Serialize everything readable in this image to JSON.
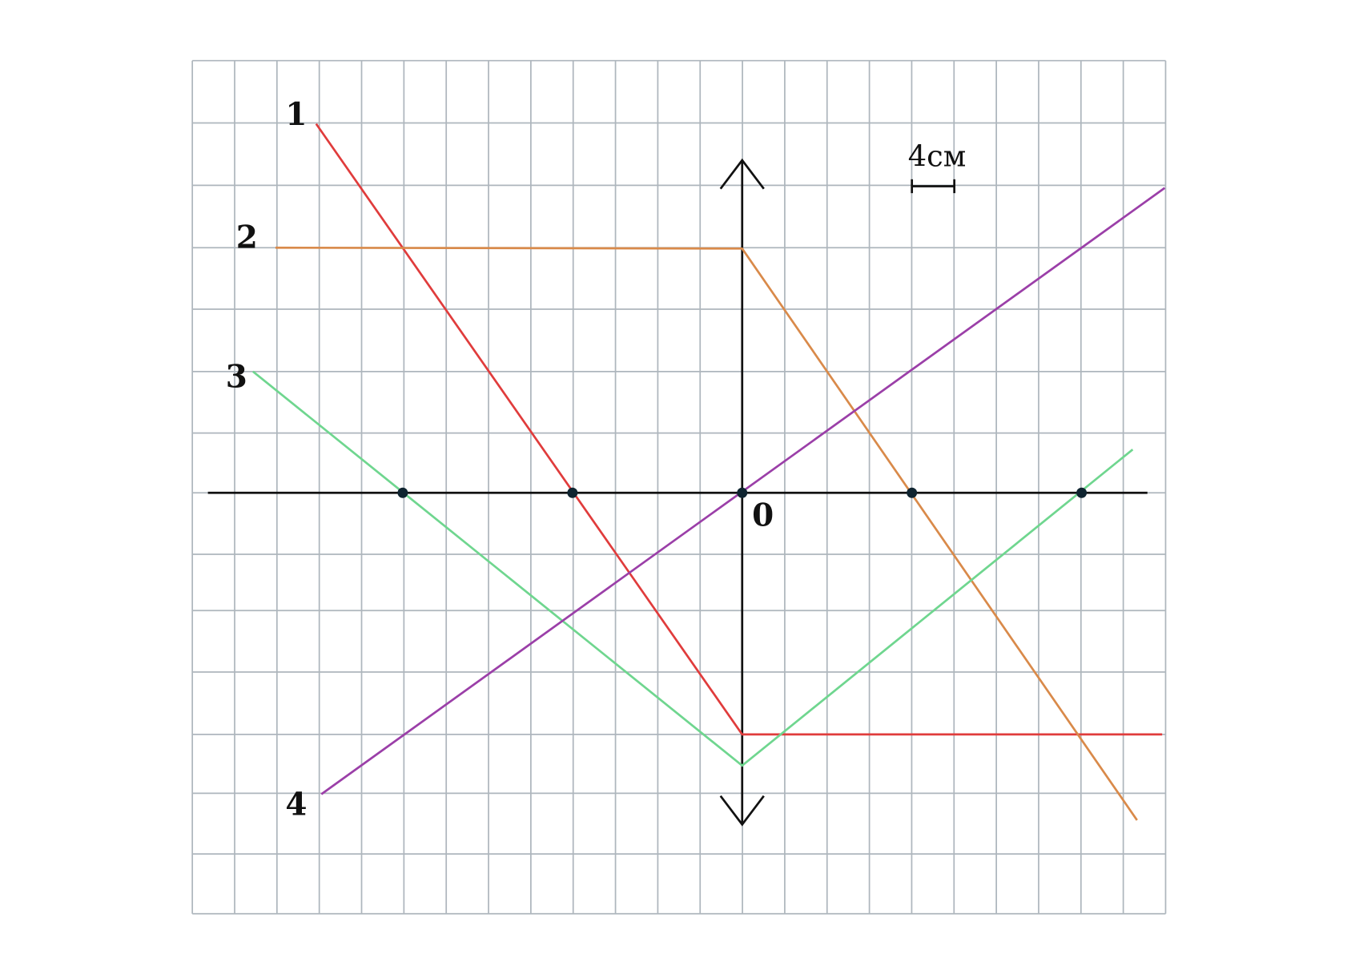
{
  "lines": [
    {
      "label": "1"
    },
    {
      "label": "2"
    },
    {
      "label": "3"
    },
    {
      "label": "4"
    }
  ],
  "origin_label": "0",
  "scale_label": "4см"
}
